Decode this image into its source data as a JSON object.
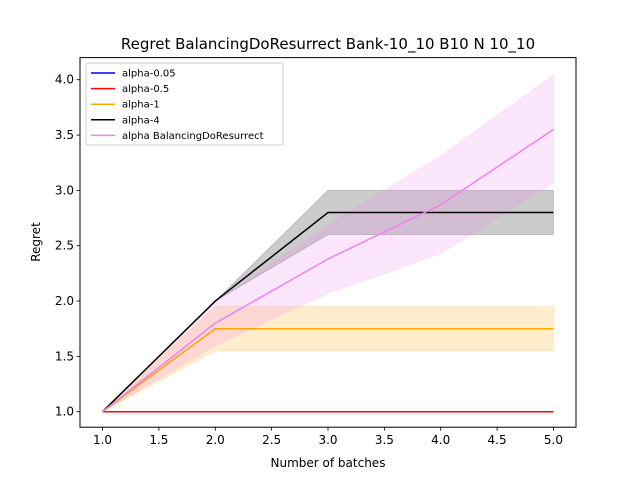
{
  "chart_data": {
    "type": "line",
    "title": "Regret BalancingDoResurrect Bank-10_10 B10 N 10_10",
    "xlabel": "Number of batches",
    "ylabel": "Regret",
    "xlim": [
      0.8,
      5.2
    ],
    "ylim": [
      0.86,
      4.2
    ],
    "xticks": [
      "1.0",
      "1.5",
      "2.0",
      "2.5",
      "3.0",
      "3.5",
      "4.0",
      "4.5",
      "5.0"
    ],
    "yticks": [
      "1.0",
      "1.5",
      "2.0",
      "2.5",
      "3.0",
      "3.5",
      "4.0"
    ],
    "grid": false,
    "legend_position": "top-left",
    "x": [
      1,
      2,
      3,
      4,
      5
    ],
    "series": [
      {
        "name": "alpha-0.05",
        "color": "#0000ff",
        "values": [
          1.0,
          1.0,
          1.0,
          1.0,
          1.0
        ],
        "lower": null,
        "upper": null
      },
      {
        "name": "alpha-0.5",
        "color": "#ff0000",
        "values": [
          1.0,
          1.0,
          1.0,
          1.0,
          1.0
        ],
        "lower": null,
        "upper": null
      },
      {
        "name": "alpha-1",
        "color": "#ffa500",
        "values": [
          1.0,
          1.75,
          1.75,
          1.75,
          1.75
        ],
        "lower": [
          1.0,
          1.55,
          1.55,
          1.55,
          1.55
        ],
        "upper": [
          1.0,
          1.95,
          1.95,
          1.95,
          1.95
        ]
      },
      {
        "name": "alpha-4",
        "color": "#000000",
        "values": [
          1.0,
          2.0,
          2.8,
          2.8,
          2.8
        ],
        "lower": [
          1.0,
          2.0,
          2.6,
          2.6,
          2.6
        ],
        "upper": [
          1.0,
          2.0,
          3.0,
          3.0,
          3.0
        ]
      },
      {
        "name": "alpha BalancingDoResurrect",
        "color": "#ee82ee",
        "values": [
          1.0,
          1.8,
          2.38,
          2.87,
          3.55
        ],
        "lower": [
          1.0,
          1.6,
          2.07,
          2.43,
          3.07
        ],
        "upper": [
          1.0,
          1.99,
          2.69,
          3.31,
          4.04
        ]
      }
    ]
  }
}
